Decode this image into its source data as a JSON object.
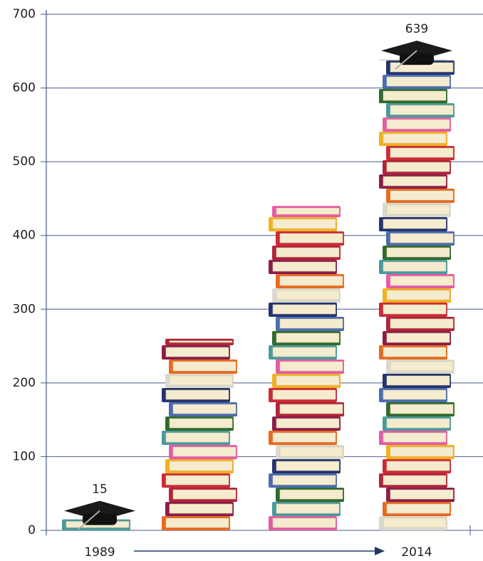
{
  "chart_data": {
    "type": "bar",
    "categories": [
      "1989",
      null,
      null,
      "2014"
    ],
    "values": [
      15,
      260,
      440,
      639
    ],
    "value_labels": [
      "15",
      null,
      null,
      "639"
    ],
    "ylim": [
      0,
      700
    ],
    "yticks": [
      0,
      100,
      200,
      300,
      400,
      500,
      600,
      700
    ],
    "grid": true,
    "book_colors": [
      "#4a9a9c",
      "#f2b01e",
      "#b0243a",
      "#e76a1f",
      "#24346e",
      "#2f6b2e",
      "#e45ba6",
      "#cc2a36",
      "#8c1d4a",
      "#d9d9d0",
      "#4c6cb0"
    ]
  }
}
